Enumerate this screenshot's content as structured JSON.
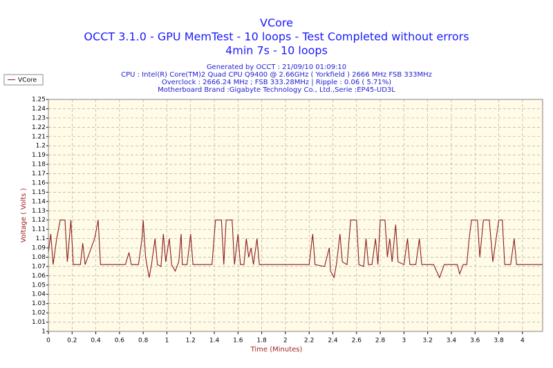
{
  "chart_data": {
    "type": "line",
    "title": "VCore",
    "subtitle": [
      "OCCT 3.1.0 - GPU MemTest - 10 loops - Test Completed without errors",
      "4min 7s - 10 loops"
    ],
    "info": [
      "Generated by OCCT : 21/09/10 01:09:10",
      "CPU : Intel(R) Core(TM)2 Quad CPU Q9400 @ 2.66GHz ( Yorkfield ) 2666 MHz FSB 333MHz",
      "Overclock : 2666.24 MHz ; FSB 333.28MHz | Ripple : 0.06 ( 5.71%)",
      "Motherboard Brand :Gigabyte Technology Co., Ltd.,Serie :EP45-UD3L"
    ],
    "xlabel": "Time (Minutes)",
    "ylabel": "Voltage ( Volts )",
    "xlim": [
      0,
      4.17
    ],
    "ylim": [
      1,
      1.25
    ],
    "xticks": [
      0,
      0.2,
      0.4,
      0.6,
      0.8,
      1,
      1.2,
      1.4,
      1.6,
      1.8,
      2,
      2.2,
      2.4,
      2.6,
      2.8,
      3,
      3.2,
      3.4,
      3.6,
      3.8,
      4
    ],
    "yticks": [
      1,
      1.01,
      1.02,
      1.03,
      1.04,
      1.05,
      1.06,
      1.07,
      1.08,
      1.09,
      1.1,
      1.11,
      1.12,
      1.13,
      1.14,
      1.15,
      1.16,
      1.17,
      1.18,
      1.19,
      1.2,
      1.21,
      1.22,
      1.23,
      1.24,
      1.25
    ],
    "grid": true,
    "legend": "top-left",
    "x": [
      0,
      0.02,
      0.04,
      0.07,
      0.1,
      0.14,
      0.16,
      0.19,
      0.21,
      0.27,
      0.29,
      0.31,
      0.39,
      0.42,
      0.44,
      0.65,
      0.68,
      0.7,
      0.76,
      0.79,
      0.8,
      0.82,
      0.85,
      0.87,
      0.9,
      0.92,
      0.95,
      0.97,
      0.99,
      1.02,
      1.04,
      1.07,
      1.1,
      1.12,
      1.13,
      1.17,
      1.2,
      1.22,
      1.38,
      1.41,
      1.46,
      1.48,
      1.5,
      1.55,
      1.57,
      1.6,
      1.62,
      1.65,
      1.67,
      1.69,
      1.71,
      1.73,
      1.76,
      1.78,
      2.2,
      2.23,
      2.25,
      2.33,
      2.37,
      2.38,
      2.41,
      2.43,
      2.46,
      2.48,
      2.52,
      2.55,
      2.6,
      2.62,
      2.66,
      2.68,
      2.7,
      2.73,
      2.76,
      2.78,
      2.8,
      2.84,
      2.86,
      2.88,
      2.9,
      2.93,
      2.95,
      3.0,
      3.03,
      3.05,
      3.1,
      3.13,
      3.15,
      3.25,
      3.3,
      3.34,
      3.45,
      3.47,
      3.5,
      3.53,
      3.55,
      3.57,
      3.62,
      3.64,
      3.67,
      3.72,
      3.75,
      3.8,
      3.83,
      3.85,
      3.9,
      3.93,
      3.95,
      4.17
    ],
    "series": [
      {
        "name": "VCore",
        "color": "#8b1a1a",
        "values": [
          1.085,
          1.105,
          1.072,
          1.1,
          1.12,
          1.12,
          1.075,
          1.12,
          1.072,
          1.072,
          1.095,
          1.072,
          1.1,
          1.12,
          1.072,
          1.072,
          1.085,
          1.072,
          1.072,
          1.1,
          1.12,
          1.08,
          1.058,
          1.072,
          1.1,
          1.072,
          1.07,
          1.105,
          1.075,
          1.1,
          1.072,
          1.065,
          1.075,
          1.105,
          1.072,
          1.072,
          1.105,
          1.072,
          1.072,
          1.12,
          1.12,
          1.072,
          1.12,
          1.12,
          1.072,
          1.105,
          1.072,
          1.072,
          1.1,
          1.08,
          1.09,
          1.072,
          1.1,
          1.072,
          1.072,
          1.105,
          1.072,
          1.07,
          1.09,
          1.065,
          1.058,
          1.072,
          1.105,
          1.075,
          1.072,
          1.12,
          1.12,
          1.072,
          1.07,
          1.1,
          1.072,
          1.072,
          1.1,
          1.072,
          1.12,
          1.12,
          1.08,
          1.1,
          1.075,
          1.115,
          1.075,
          1.072,
          1.1,
          1.072,
          1.072,
          1.1,
          1.072,
          1.072,
          1.058,
          1.072,
          1.072,
          1.062,
          1.072,
          1.072,
          1.1,
          1.12,
          1.12,
          1.08,
          1.12,
          1.12,
          1.075,
          1.12,
          1.12,
          1.072,
          1.072,
          1.1,
          1.072,
          1.072
        ]
      }
    ]
  }
}
